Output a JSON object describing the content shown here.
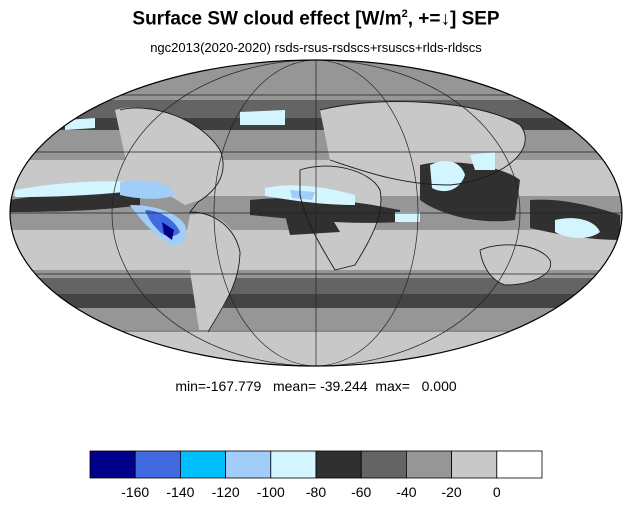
{
  "title": {
    "main": "Surface SW cloud effect [W/m",
    "sup": "2",
    "tail": ", +=↓]  SEP"
  },
  "subtitle": "ngc2013(2020-2020)  rsds-rsus-rsdscs+rsuscs+rlds-rldscs",
  "stats": "min=-167.779   mean= -39.244  max=   0.000",
  "colorbar": {
    "colors": [
      "#00008b",
      "#4169e1",
      "#00bfff",
      "#a0cef8",
      "#d2f5ff",
      "#303030",
      "#646464",
      "#969696",
      "#c8c8c8",
      "#ffffff"
    ],
    "labels": [
      "-160",
      "-140",
      "-120",
      "-100",
      "-80",
      "-60",
      "-40",
      "-20",
      "0"
    ]
  }
}
